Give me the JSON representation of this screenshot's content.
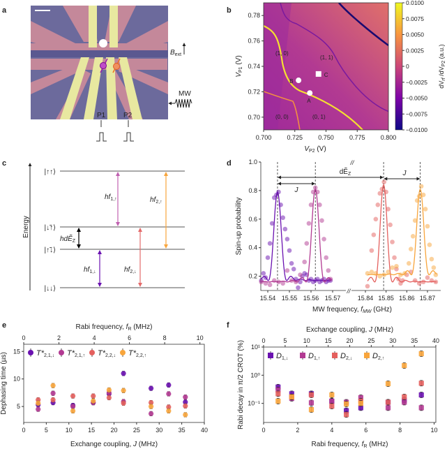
{
  "colors": {
    "purple": "#6a11b0",
    "magenta": "#b23a92",
    "red": "#e4605e",
    "orange": "#f8a53c"
  },
  "panel_labels": [
    "a",
    "b",
    "c",
    "d",
    "e",
    "f"
  ],
  "panel_a": {
    "b_label": "B",
    "b_sub": "ext",
    "mw_label": "MW",
    "gate_labels": [
      "P1",
      "P2"
    ]
  },
  "chart_data": [
    {
      "panel": "b",
      "type": "heatmap",
      "xlabel": "V",
      "xlabel_sub": "P2",
      "xlabel_unit": " (V)",
      "ylabel": "V",
      "ylabel_sub": "P1",
      "ylabel_unit": " (V)",
      "xlim": [
        0.7,
        0.8
      ],
      "ylim": [
        0.69,
        0.79
      ],
      "xticks": [
        "0.700",
        "0.725",
        "0.750",
        "0.775",
        "0.800"
      ],
      "yticks": [
        "0.70",
        "0.72",
        "0.74",
        "0.76",
        "0.78"
      ],
      "colorbar": {
        "label": "dV",
        "label_sub": "rf",
        "label_mid": " /dV",
        "label_sub2": "P2",
        "label_unit": " (a.u.)",
        "range": [
          -0.01,
          0.01
        ],
        "colormap": "plasma",
        "ticks": [
          "0.0100",
          "0.0075",
          "0.0050",
          "0.0025",
          "0",
          "−0.0025",
          "−0.0050",
          "−0.0075",
          "−0.0100"
        ]
      },
      "region_labels": [
        "(1, 0)",
        "(1, 1)",
        "(0, 0)",
        "(0, 1)"
      ],
      "markers": [
        {
          "label": "A",
          "x": 0.737,
          "y": 0.719,
          "shape": "circle"
        },
        {
          "label": "B",
          "x": 0.728,
          "y": 0.729,
          "shape": "circle"
        },
        {
          "label": "C",
          "x": 0.744,
          "y": 0.734,
          "shape": "square"
        }
      ]
    },
    {
      "panel": "c",
      "type": "diagram",
      "ylabel": "Energy",
      "levels": [
        "|↑↑⟩",
        "|↓̃↑⟩",
        "|↑̃↓⟩",
        "|↓↓⟩"
      ],
      "transitions": [
        {
          "label": "hf",
          "sub": "1,↑",
          "color": "#c060b0"
        },
        {
          "label": "hf",
          "sub": "2,↑",
          "color": "#f8a53c"
        },
        {
          "label": "hf",
          "sub": "1,↓",
          "color": "#6a11b0"
        },
        {
          "label": "hf",
          "sub": "2,↓",
          "color": "#e46a6a"
        },
        {
          "label": "hdẼ",
          "sub": "Z",
          "color": "#000000"
        }
      ]
    },
    {
      "panel": "d",
      "type": "scatter",
      "xlabel": "MW frequency, ",
      "xlabel_it": "f",
      "xlabel_sub": "MW",
      "xlabel_unit": " (GHz)",
      "ylabel": "Spin-up probability",
      "ylim": [
        0.1,
        1.0
      ],
      "xlim_left": [
        15.537,
        15.573
      ],
      "xlim_right": [
        15.833,
        15.876
      ],
      "broken_x_axis": true,
      "xticks_left": [
        "15.54",
        "15.55",
        "15.56",
        "15.57"
      ],
      "xticks_right": [
        "15.84",
        "15.85",
        "15.86",
        "15.87"
      ],
      "yticks": [
        "0.2",
        "0.4",
        "0.6",
        "0.8",
        "1.0"
      ],
      "annotations": {
        "J": "J",
        "dEz": "dẼ",
        "dEz_sub": "Z",
        "break": "//"
      },
      "vlines": [
        15.5445,
        15.562,
        15.8488,
        15.8665
      ],
      "series": [
        {
          "color": "purple",
          "segment": "left",
          "fit": {
            "center": 15.5445,
            "peak": 0.79,
            "base": 0.17,
            "width": 0.0043
          },
          "points": [
            [
              15.537,
              0.17
            ],
            [
              15.538,
              0.22
            ],
            [
              15.539,
              0.19
            ],
            [
              15.54,
              0.33
            ],
            [
              15.541,
              0.43
            ],
            [
              15.542,
              0.57
            ],
            [
              15.543,
              0.75
            ],
            [
              15.544,
              0.77
            ],
            [
              15.545,
              0.79
            ],
            [
              15.546,
              0.7
            ],
            [
              15.547,
              0.61
            ],
            [
              15.548,
              0.53
            ],
            [
              15.549,
              0.46
            ],
            [
              15.55,
              0.38
            ],
            [
              15.551,
              0.29
            ],
            [
              15.552,
              0.25
            ],
            [
              15.553,
              0.18
            ],
            [
              15.554,
              0.12
            ],
            [
              15.555,
              0.16
            ],
            [
              15.556,
              0.2
            ],
            [
              15.557,
              0.22
            ],
            [
              15.558,
              0.21
            ],
            [
              15.559,
              0.17
            ],
            [
              15.56,
              0.18
            ],
            [
              15.561,
              0.16
            ],
            [
              15.562,
              0.17
            ],
            [
              15.563,
              0.18
            ],
            [
              15.564,
              0.16
            ],
            [
              15.565,
              0.17
            ],
            [
              15.566,
              0.18
            ],
            [
              15.567,
              0.16
            ],
            [
              15.568,
              0.17
            ],
            [
              15.569,
              0.17
            ]
          ]
        },
        {
          "color": "magenta",
          "segment": "left",
          "fit": {
            "center": 15.562,
            "peak": 0.81,
            "base": 0.16,
            "width": 0.0043
          },
          "points": [
            [
              15.537,
              0.16
            ],
            [
              15.539,
              0.15
            ],
            [
              15.541,
              0.14
            ],
            [
              15.543,
              0.17
            ],
            [
              15.545,
              0.16
            ],
            [
              15.547,
              0.15
            ],
            [
              15.549,
              0.24
            ],
            [
              15.551,
              0.17
            ],
            [
              15.553,
              0.16
            ],
            [
              15.555,
              0.21
            ],
            [
              15.557,
              0.3
            ],
            [
              15.558,
              0.43
            ],
            [
              15.559,
              0.57
            ],
            [
              15.56,
              0.7
            ],
            [
              15.561,
              0.79
            ],
            [
              15.562,
              0.82
            ],
            [
              15.563,
              0.79
            ],
            [
              15.564,
              0.7
            ],
            [
              15.565,
              0.59
            ],
            [
              15.566,
              0.46
            ],
            [
              15.567,
              0.33
            ],
            [
              15.568,
              0.24
            ],
            [
              15.569,
              0.18
            ]
          ]
        },
        {
          "color": "red",
          "segment": "right",
          "fit": {
            "center": 15.8488,
            "peak": 0.84,
            "base": 0.16,
            "width": 0.0043
          },
          "points": [
            [
              15.841,
              0.13
            ],
            [
              15.843,
              0.38
            ],
            [
              15.844,
              0.49
            ],
            [
              15.845,
              0.6
            ],
            [
              15.846,
              0.7
            ],
            [
              15.847,
              0.78
            ],
            [
              15.848,
              0.81
            ],
            [
              15.849,
              0.86
            ],
            [
              15.85,
              0.79
            ],
            [
              15.851,
              0.67
            ],
            [
              15.852,
              0.56
            ],
            [
              15.853,
              0.44
            ],
            [
              15.854,
              0.33
            ],
            [
              15.855,
              0.25
            ],
            [
              15.856,
              0.18
            ],
            [
              15.857,
              0.15
            ],
            [
              15.858,
              0.17
            ],
            [
              15.86,
              0.21
            ],
            [
              15.862,
              0.23
            ],
            [
              15.864,
              0.17
            ],
            [
              15.866,
              0.15
            ],
            [
              15.868,
              0.16
            ],
            [
              15.87,
              0.19
            ],
            [
              15.872,
              0.17
            ],
            [
              15.874,
              0.16
            ]
          ]
        },
        {
          "color": "orange",
          "segment": "right",
          "fit": {
            "center": 15.8665,
            "peak": 0.81,
            "base": 0.21,
            "width": 0.0043
          },
          "points": [
            [
              15.841,
              0.22
            ],
            [
              15.843,
              0.23
            ],
            [
              15.845,
              0.22
            ],
            [
              15.847,
              0.2
            ],
            [
              15.849,
              0.21
            ],
            [
              15.851,
              0.23
            ],
            [
              15.853,
              0.26
            ],
            [
              15.855,
              0.27
            ],
            [
              15.857,
              0.21
            ],
            [
              15.859,
              0.22
            ],
            [
              15.861,
              0.29
            ],
            [
              15.862,
              0.39
            ],
            [
              15.863,
              0.48
            ],
            [
              15.864,
              0.59
            ],
            [
              15.865,
              0.73
            ],
            [
              15.866,
              0.76
            ],
            [
              15.867,
              0.83
            ],
            [
              15.868,
              0.77
            ],
            [
              15.869,
              0.67
            ],
            [
              15.87,
              0.55
            ],
            [
              15.871,
              0.42
            ],
            [
              15.872,
              0.32
            ],
            [
              15.873,
              0.26
            ],
            [
              15.874,
              0.21
            ]
          ]
        }
      ]
    },
    {
      "panel": "e",
      "type": "scatter",
      "xlabel": "Exchange coupling, ",
      "xlabel_it": "J",
      "xlabel_unit": " (MHz)",
      "top_xlabel": "Rabi frequency, ",
      "top_xlabel_it": "f",
      "top_xlabel_sub": "R",
      "top_xlabel_unit": " (MHz)",
      "ylabel": "Dephasing time (µs)",
      "xlim": [
        0,
        40
      ],
      "top_xlim": [
        0,
        10.25
      ],
      "ylim": [
        2.1,
        16.3
      ],
      "xticks": [
        "0",
        "5",
        "10",
        "15",
        "20",
        "25",
        "30",
        "35",
        "40"
      ],
      "top_xticks": [
        "0",
        "2",
        "4",
        "6",
        "8",
        "10"
      ],
      "yticks": [
        "5",
        "10",
        "15"
      ],
      "x": [
        3.2,
        6.5,
        10.9,
        15.4,
        18.9,
        22.1,
        28.2,
        32.1,
        35.8
      ],
      "error": 0.4,
      "series": [
        {
          "name": "T*",
          "sub": "2,1,↓",
          "color": "purple",
          "values": [
            5.3,
            5.7,
            5.2,
            5.7,
            7.3,
            11.0,
            8.3,
            8.9,
            5.8
          ]
        },
        {
          "name": "T*",
          "sub": "2,1,↑",
          "color": "magenta",
          "values": [
            4.5,
            7.4,
            5.0,
            5.7,
            7.5,
            5.9,
            3.7,
            7.3,
            6.7
          ]
        },
        {
          "name": "T*",
          "sub": "2,2,↓",
          "color": "red",
          "values": [
            6.2,
            6.2,
            6.9,
            6.9,
            6.6,
            5.6,
            5.7,
            4.9,
            5.1
          ]
        },
        {
          "name": "T*",
          "sub": "2,2,↑",
          "color": "orange",
          "values": [
            5.6,
            8.8,
            4.2,
            6.0,
            8.0,
            7.9,
            5.0,
            4.2,
            3.5
          ]
        }
      ]
    },
    {
      "panel": "f",
      "type": "scatter",
      "xlabel": "Rabi frequency, ",
      "xlabel_it": "f",
      "xlabel_sub": "R",
      "xlabel_unit": " (MHz)",
      "top_xlabel": "Exchange coupling, ",
      "top_xlabel_it": "J",
      "top_xlabel_unit": " (MHz)",
      "ylabel": "Rabi decay in π/2 CROT (%)",
      "yscale": "log",
      "xlim": [
        0,
        10.1
      ],
      "top_xlim": [
        0,
        40
      ],
      "ylim": [
        0.021,
        10
      ],
      "xticks": [
        "0",
        "2",
        "4",
        "6",
        "8",
        "10"
      ],
      "top_xticks": [
        "0",
        "5",
        "10",
        "15",
        "20",
        "25",
        "30",
        "35",
        "40"
      ],
      "yticks": [
        "10⁻¹",
        "10⁰",
        "10¹"
      ],
      "x": [
        0.85,
        1.65,
        2.8,
        4.0,
        4.85,
        5.7,
        7.3,
        8.25,
        9.25
      ],
      "series": [
        {
          "name": "D",
          "sub": "1,↓",
          "color": "purple",
          "values": [
            0.38,
            0.22,
            0.22,
            0.12,
            0.055,
            0.07,
            0.11,
            0.13,
            0.2
          ]
        },
        {
          "name": "D",
          "sub": "1,↑",
          "color": "magenta",
          "values": [
            0.3,
            0.15,
            0.105,
            0.12,
            0.11,
            0.16,
            0.07,
            0.11,
            0.07
          ]
        },
        {
          "name": "D",
          "sub": "2,↓",
          "color": "red",
          "values": [
            0.22,
            0.17,
            0.2,
            0.08,
            0.04,
            0.12,
            0.11,
            0.17,
            0.52
          ]
        },
        {
          "name": "D",
          "sub": "2,↑",
          "color": "orange",
          "values": [
            0.12,
            0.17,
            0.06,
            0.2,
            0.095,
            0.1,
            0.5,
            2.2,
            5.8
          ]
        }
      ]
    }
  ]
}
